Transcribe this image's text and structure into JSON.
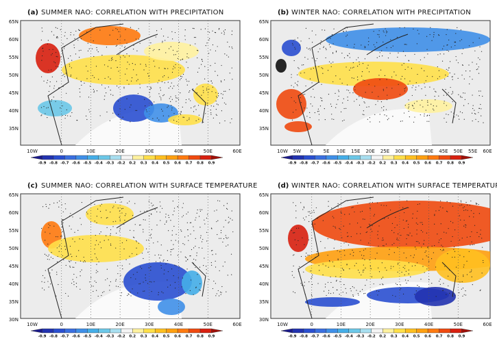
{
  "panels": [
    {
      "label": "(a)",
      "title": "SUMMER NAO: CORRELATION WITH PRECIPITATION",
      "lat_labels": [
        "65N",
        "60N",
        "55N",
        "50N",
        "45N",
        "40N",
        "35N"
      ],
      "lon_labels": [
        "10W",
        "0",
        "10E",
        "20E",
        "30E",
        "40E",
        "50E",
        "60E"
      ]
    },
    {
      "label": "(b)",
      "title": "WINTER NAO: CORRELATION WITH PRECIPITATION",
      "lat_labels": [
        "65N",
        "60N",
        "55N",
        "50N",
        "45N",
        "40N",
        "35N"
      ],
      "lon_labels": [
        "10W",
        "5W",
        "0",
        "5E",
        "10E",
        "15E",
        "20E",
        "25E",
        "30E",
        "35E",
        "40E",
        "45E",
        "50E",
        "55E",
        "60E"
      ]
    },
    {
      "label": "(c)",
      "title": "SUMMER NAO: CORRELATION WITH SURFACE TEMPERATURE",
      "lat_labels": [
        "65N",
        "60N",
        "55N",
        "50N",
        "45N",
        "40N",
        "35N",
        "30N"
      ],
      "lon_labels": [
        "10W",
        "0",
        "10E",
        "20E",
        "30E",
        "40E",
        "50E",
        "60E"
      ]
    },
    {
      "label": "(d)",
      "title": "WINTER NAO: CORRELATION WITH SURFACE TEMPERATURE",
      "lat_labels": [
        "65N",
        "60N",
        "55N",
        "50N",
        "45N",
        "40N",
        "35N",
        "30N"
      ],
      "lon_labels": [
        "10W",
        "0",
        "10E",
        "20E",
        "30E",
        "40E",
        "50E",
        "60E"
      ]
    }
  ],
  "colorbar": {
    "labels": [
      "-0.9",
      "-0.8",
      "-0.7",
      "-0.6",
      "-0.5",
      "-0.4",
      "-0.3",
      "-0.2",
      "0.2",
      "0.3",
      "0.4",
      "0.5",
      "0.6",
      "0.7",
      "0.8",
      "0.9"
    ],
    "colors": [
      "#1a1a8c",
      "#2233b0",
      "#2a4fd0",
      "#3a6fe0",
      "#3f8fe8",
      "#45aee8",
      "#6cc8e8",
      "#a8dff0",
      "#f4f4f4",
      "#fff2a0",
      "#ffe04a",
      "#ffc020",
      "#ffa010",
      "#ff7a10",
      "#f04a10",
      "#d82010",
      "#a01008"
    ]
  }
}
